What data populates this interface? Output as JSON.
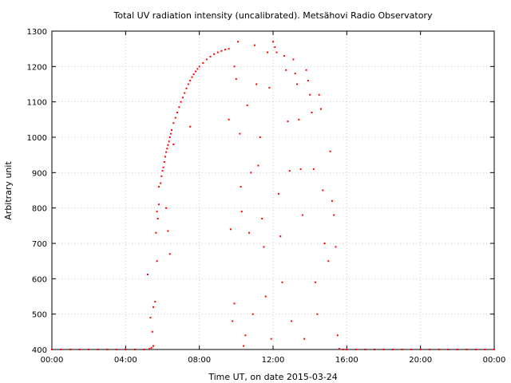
{
  "chart_data": {
    "type": "scatter",
    "title": "Total UV radiation intensity (uncalibrated). Metsähovi Radio Observatory",
    "xlabel": "Time UT, on date 2015-03-24",
    "ylabel": "Arbitrary unit",
    "xlim_hours": [
      0,
      24
    ],
    "ylim": [
      400,
      1300
    ],
    "x_tick_labels": [
      "00:00",
      "04:00",
      "08:00",
      "12:00",
      "16:00",
      "20:00",
      "00:00"
    ],
    "y_tick_labels": [
      "400",
      "500",
      "600",
      "700",
      "800",
      "900",
      "1000",
      "1100",
      "1200",
      "1300"
    ],
    "grid": true,
    "series": [
      {
        "color": "#ff0000",
        "x_unit": "hours UT",
        "points": [
          [
            0.0,
            400
          ],
          [
            0.5,
            400
          ],
          [
            1.0,
            400
          ],
          [
            1.5,
            400
          ],
          [
            2.0,
            400
          ],
          [
            2.5,
            400
          ],
          [
            3.0,
            400
          ],
          [
            3.5,
            400
          ],
          [
            4.0,
            400
          ],
          [
            4.5,
            400
          ],
          [
            5.0,
            400
          ],
          [
            5.3,
            402
          ],
          [
            5.4,
            405
          ],
          [
            5.5,
            410
          ],
          [
            5.45,
            450
          ],
          [
            5.35,
            490
          ],
          [
            5.5,
            520
          ],
          [
            5.6,
            535
          ],
          [
            5.2,
            612
          ],
          [
            5.7,
            650
          ],
          [
            5.65,
            730
          ],
          [
            5.75,
            770
          ],
          [
            5.7,
            790
          ],
          [
            5.8,
            810
          ],
          [
            5.8,
            860
          ],
          [
            5.9,
            870
          ],
          [
            5.95,
            890
          ],
          [
            6.0,
            905
          ],
          [
            6.05,
            915
          ],
          [
            6.1,
            930
          ],
          [
            6.15,
            945
          ],
          [
            6.2,
            958
          ],
          [
            6.25,
            968
          ],
          [
            6.3,
            978
          ],
          [
            6.35,
            988
          ],
          [
            6.4,
            1000
          ],
          [
            6.45,
            1010
          ],
          [
            6.5,
            1020
          ],
          [
            6.6,
            1040
          ],
          [
            6.7,
            1055
          ],
          [
            6.8,
            1070
          ],
          [
            6.9,
            1085
          ],
          [
            7.0,
            1100
          ],
          [
            7.1,
            1112
          ],
          [
            7.2,
            1125
          ],
          [
            7.3,
            1138
          ],
          [
            7.4,
            1150
          ],
          [
            7.5,
            1160
          ],
          [
            7.6,
            1170
          ],
          [
            7.7,
            1178
          ],
          [
            7.8,
            1186
          ],
          [
            7.9,
            1193
          ],
          [
            8.0,
            1200
          ],
          [
            8.2,
            1210
          ],
          [
            8.4,
            1220
          ],
          [
            8.6,
            1228
          ],
          [
            8.8,
            1235
          ],
          [
            9.0,
            1240
          ],
          [
            9.2,
            1244
          ],
          [
            9.4,
            1248
          ],
          [
            9.6,
            1250
          ],
          [
            6.2,
            800
          ],
          [
            6.3,
            735
          ],
          [
            6.4,
            670
          ],
          [
            6.6,
            980
          ],
          [
            7.5,
            1030
          ],
          [
            9.6,
            1050
          ],
          [
            9.7,
            740
          ],
          [
            9.8,
            480
          ],
          [
            9.9,
            530
          ],
          [
            9.9,
            1200
          ],
          [
            10.0,
            1165
          ],
          [
            10.1,
            1270
          ],
          [
            10.2,
            1010
          ],
          [
            10.25,
            860
          ],
          [
            10.3,
            790
          ],
          [
            10.4,
            410
          ],
          [
            10.5,
            440
          ],
          [
            10.6,
            1090
          ],
          [
            10.8,
            900
          ],
          [
            10.7,
            730
          ],
          [
            10.9,
            500
          ],
          [
            11.0,
            1260
          ],
          [
            11.1,
            1150
          ],
          [
            11.2,
            920
          ],
          [
            11.3,
            1000
          ],
          [
            11.4,
            770
          ],
          [
            11.5,
            690
          ],
          [
            11.6,
            550
          ],
          [
            11.7,
            1240
          ],
          [
            11.8,
            1140
          ],
          [
            11.9,
            430
          ],
          [
            12.0,
            1270
          ],
          [
            12.1,
            1255
          ],
          [
            12.2,
            1240
          ],
          [
            12.3,
            840
          ],
          [
            12.4,
            720
          ],
          [
            12.5,
            590
          ],
          [
            12.6,
            1230
          ],
          [
            12.7,
            1190
          ],
          [
            12.8,
            1045
          ],
          [
            12.9,
            905
          ],
          [
            13.0,
            480
          ],
          [
            13.1,
            1220
          ],
          [
            13.2,
            1180
          ],
          [
            13.3,
            1150
          ],
          [
            13.4,
            1050
          ],
          [
            13.5,
            910
          ],
          [
            13.6,
            780
          ],
          [
            13.7,
            430
          ],
          [
            13.8,
            1190
          ],
          [
            13.9,
            1160
          ],
          [
            14.0,
            1120
          ],
          [
            14.1,
            1070
          ],
          [
            14.2,
            910
          ],
          [
            14.3,
            590
          ],
          [
            14.4,
            500
          ],
          [
            14.5,
            1120
          ],
          [
            14.6,
            1080
          ],
          [
            14.7,
            850
          ],
          [
            14.8,
            700
          ],
          [
            15.0,
            650
          ],
          [
            15.1,
            960
          ],
          [
            15.2,
            820
          ],
          [
            15.3,
            780
          ],
          [
            15.4,
            690
          ],
          [
            15.5,
            440
          ],
          [
            15.6,
            402
          ],
          [
            15.8,
            400
          ],
          [
            16.0,
            400
          ],
          [
            16.5,
            400
          ],
          [
            17.0,
            400
          ],
          [
            17.5,
            400
          ],
          [
            18.0,
            400
          ],
          [
            18.5,
            400
          ],
          [
            19.0,
            400
          ],
          [
            19.5,
            400
          ],
          [
            20.0,
            400
          ],
          [
            20.5,
            400
          ],
          [
            21.0,
            400
          ],
          [
            21.5,
            400
          ],
          [
            22.0,
            400
          ],
          [
            22.5,
            400
          ],
          [
            23.0,
            400
          ],
          [
            23.5,
            400
          ],
          [
            24.0,
            400
          ]
        ]
      }
    ]
  }
}
